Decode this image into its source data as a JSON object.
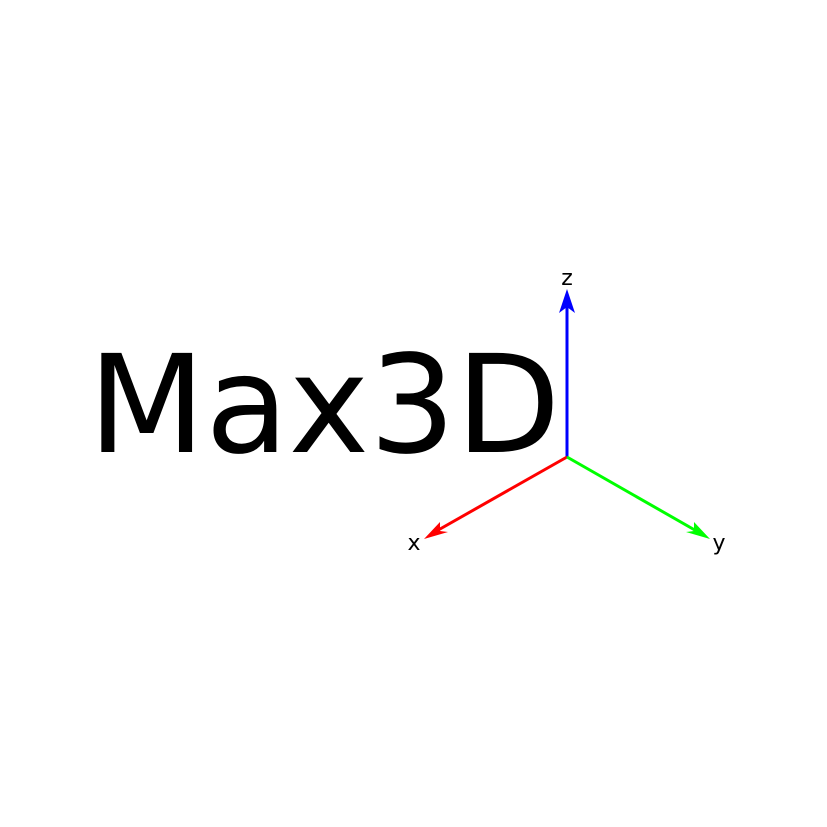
{
  "logo": {
    "text": "Max3D"
  },
  "axes": {
    "x": {
      "label": "x",
      "color": "#ff0000"
    },
    "y": {
      "label": "y",
      "color": "#00ff00"
    },
    "z": {
      "label": "z",
      "color": "#0000ff"
    }
  }
}
